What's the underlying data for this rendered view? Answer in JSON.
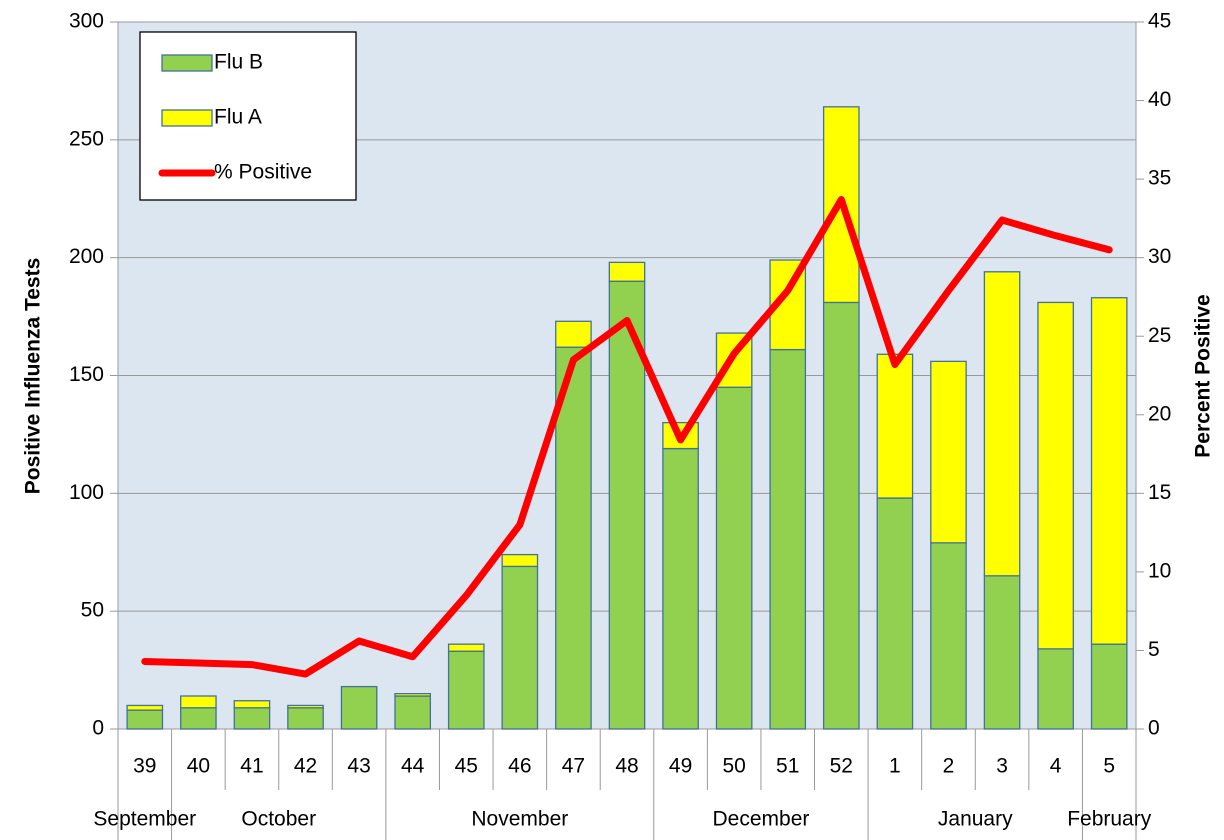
{
  "chart_data": {
    "type": "bar",
    "stacked": true,
    "y_label": "Positive Influenza Tests",
    "y2_label": "Percent Positive",
    "categories": [
      "39",
      "40",
      "41",
      "42",
      "43",
      "44",
      "45",
      "46",
      "47",
      "48",
      "49",
      "50",
      "51",
      "52",
      "1",
      "2",
      "3",
      "4",
      "5"
    ],
    "months": [
      "September",
      "October",
      null,
      null,
      null,
      "November",
      null,
      null,
      null,
      null,
      "December",
      null,
      null,
      null,
      "January",
      null,
      null,
      null,
      "February"
    ],
    "series": [
      {
        "name": "Flu B",
        "type": "bar",
        "color": "#92d050",
        "values": [
          8,
          9,
          9,
          9,
          18,
          14,
          33,
          69,
          162,
          190,
          119,
          145,
          161,
          181,
          98,
          79,
          65,
          34,
          36
        ]
      },
      {
        "name": "Flu A",
        "type": "bar",
        "color": "#ffff00",
        "values": [
          2,
          5,
          3,
          1,
          0,
          1,
          3,
          5,
          11,
          8,
          11,
          23,
          38,
          83,
          61,
          77,
          129,
          147,
          147
        ]
      },
      {
        "name": "% Positive",
        "type": "line",
        "axis": "y2",
        "color": "#ff0000",
        "values": [
          4.3,
          4.2,
          4.1,
          3.5,
          5.6,
          4.6,
          8.5,
          13.0,
          23.5,
          26.0,
          18.4,
          23.9,
          27.9,
          33.7,
          23.2,
          27.9,
          32.4,
          31.4,
          30.5
        ]
      }
    ],
    "ylim": [
      0,
      300
    ],
    "yticks": [
      0,
      50,
      100,
      150,
      200,
      250,
      300
    ],
    "y2lim": [
      0,
      45
    ],
    "y2ticks": [
      0,
      5,
      10,
      15,
      20,
      25,
      30,
      35,
      40,
      45
    ],
    "grid": true,
    "legend": "top-left",
    "background": "#dce6f1"
  }
}
